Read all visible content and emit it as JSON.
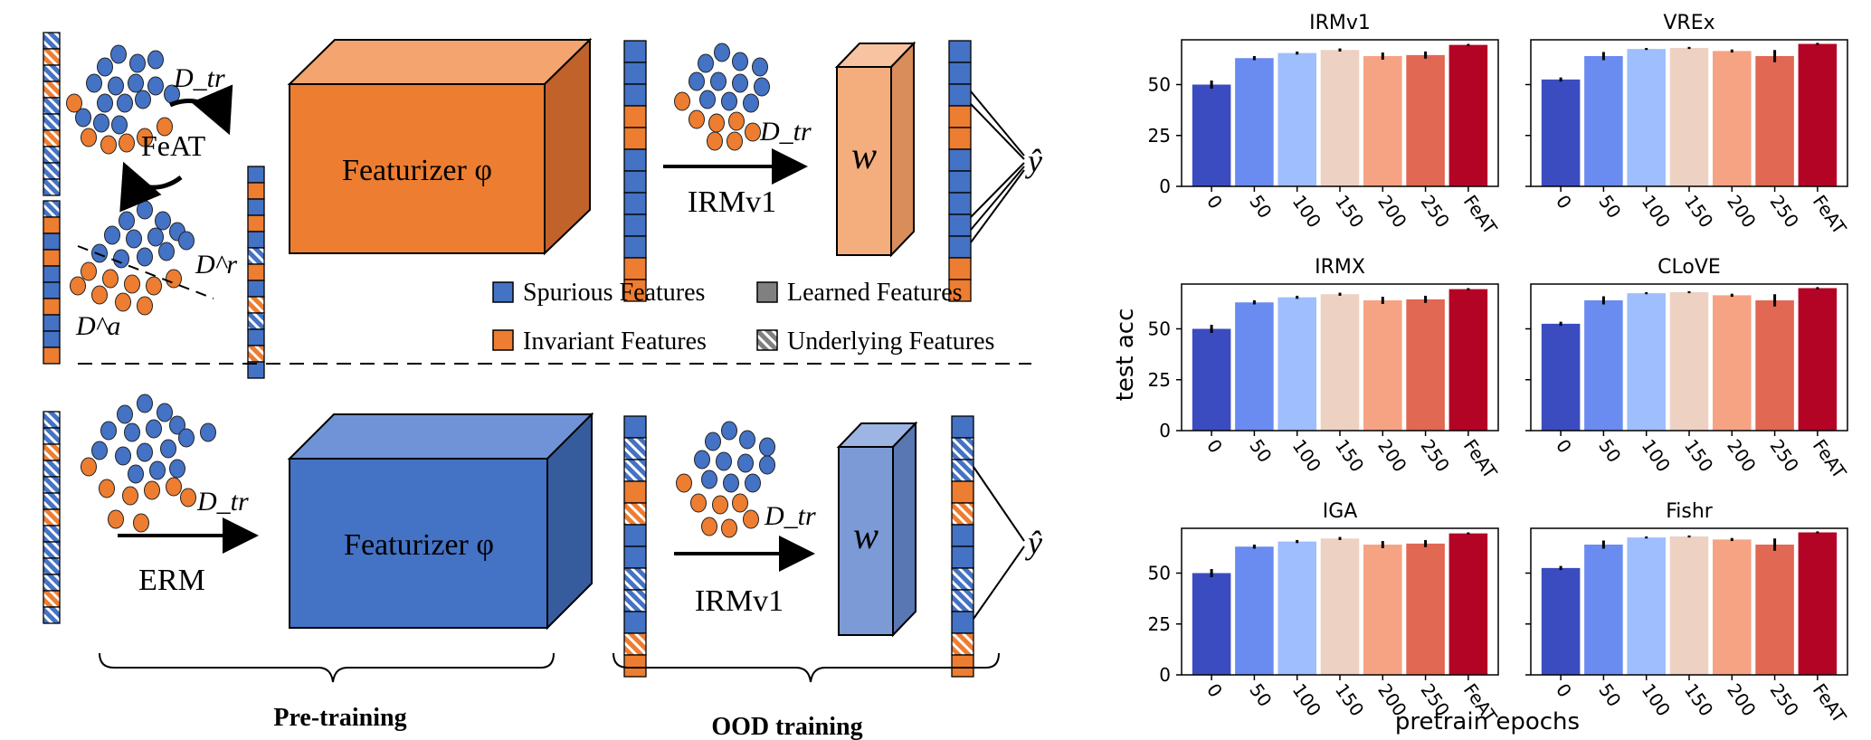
{
  "colors": {
    "spurious": "#4472C4",
    "invariant": "#ED7D31",
    "learned": "#808080",
    "box_orange_front": "#ED7D31",
    "box_orange_top": "#F4A46E",
    "box_orange_side": "#C0622A",
    "box_blue_front": "#4472C4",
    "box_blue_top": "#6F93D6",
    "box_blue_side": "#365C9E",
    "w_orange_front": "#F4AE7E",
    "w_orange_side": "#D98D5A",
    "w_blue_front": "#7C9BD6",
    "w_blue_side": "#5877B3"
  },
  "diagram": {
    "top": {
      "data_label": "D_tr",
      "feat_label": "FeAT",
      "retained_label": "D^r",
      "augmented_label": "D^a",
      "featurizer_label": "Featurizer φ",
      "method_label": "IRMv1",
      "ood_data_label": "D_tr",
      "classifier_label": "w",
      "output_label": "ŷ"
    },
    "bottom": {
      "data_label": "D_tr",
      "method_label": "ERM",
      "featurizer_label": "Featurizer φ",
      "ood_method_label": "IRMv1",
      "ood_data_label": "D_tr",
      "classifier_label": "w",
      "output_label": "ŷ"
    },
    "legend": [
      {
        "label": "Spurious Features",
        "kind": "spurious"
      },
      {
        "label": "Learned  Features",
        "kind": "learned"
      },
      {
        "label": "Invariant Features",
        "kind": "invariant"
      },
      {
        "label": "Underlying Features",
        "kind": "underlying"
      }
    ],
    "stage_labels": {
      "pretraining": "Pre-training",
      "ood_training": "OOD training"
    }
  },
  "chart_data": {
    "type": "bar",
    "layout": "3x2 grid",
    "ylabel": "test acc",
    "xlabel": "pretrain epochs",
    "categories": [
      "0",
      "50",
      "100",
      "150",
      "200",
      "250",
      "FeAT"
    ],
    "bar_colors": [
      "#3B4CC0",
      "#6A8BEF",
      "#9EBEFD",
      "#EDD1C2",
      "#F6A384",
      "#E16852",
      "#B40426"
    ],
    "ylim": [
      0,
      72
    ],
    "yticks": [
      0,
      25,
      50
    ],
    "panels": [
      {
        "title": "IRMv1",
        "values": [
          50,
          63,
          65.5,
          67,
          64,
          64.5,
          69.5
        ],
        "errors": [
          4,
          2,
          1.5,
          1.5,
          3.5,
          3.5,
          1
        ]
      },
      {
        "title": "VREx",
        "values": [
          52.5,
          64,
          67.5,
          68,
          66.5,
          64,
          70
        ],
        "errors": [
          2,
          4,
          1,
          1,
          1.5,
          6,
          1
        ]
      },
      {
        "title": "IRMX",
        "values": [
          50,
          63,
          65.5,
          67,
          64,
          64.5,
          69.5
        ],
        "errors": [
          4,
          2,
          1.5,
          1.5,
          3.5,
          3.5,
          1
        ]
      },
      {
        "title": "CLoVE",
        "values": [
          52.5,
          64,
          67.5,
          68,
          66.5,
          64,
          70
        ],
        "errors": [
          2,
          4,
          1,
          1,
          1.5,
          6,
          1
        ]
      },
      {
        "title": "IGA",
        "values": [
          50,
          63,
          65.5,
          67,
          64,
          64.5,
          69.5
        ],
        "errors": [
          4,
          2,
          1.5,
          1.5,
          3.5,
          3.5,
          1
        ]
      },
      {
        "title": "Fishr",
        "values": [
          52.5,
          64,
          67.5,
          68,
          66.5,
          64,
          70
        ],
        "errors": [
          2,
          4,
          1,
          1,
          1.5,
          6,
          1
        ]
      }
    ]
  }
}
